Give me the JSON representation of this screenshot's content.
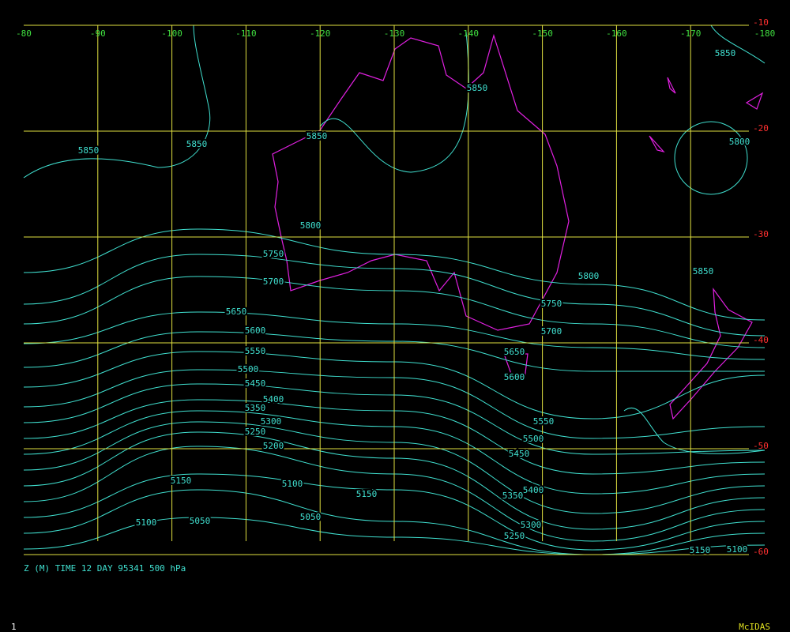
{
  "map": {
    "lon_ticks": [
      -80,
      -90,
      -100,
      -110,
      -120,
      -130,
      -140,
      -150,
      -160,
      -170,
      -180
    ],
    "lat_ticks": [
      -10,
      -20,
      -30,
      -40,
      -50,
      -60
    ],
    "contour_labels": [
      5850,
      5850,
      5850,
      5850,
      5850,
      5800,
      5800,
      5750,
      5700,
      5800,
      5750,
      5700,
      5850,
      5650,
      5600,
      5550,
      5500,
      5450,
      5400,
      5350,
      5300,
      5250,
      5200,
      5150,
      5100,
      5100,
      5050,
      5050,
      5150,
      5650,
      5600,
      5550,
      5500,
      5450,
      5400,
      5350,
      5300,
      5250,
      5150,
      5100
    ],
    "caption": "Z (M) TIME 12 DAY 95341 500 hPa",
    "frame": "1",
    "brand": "McIDAS"
  }
}
